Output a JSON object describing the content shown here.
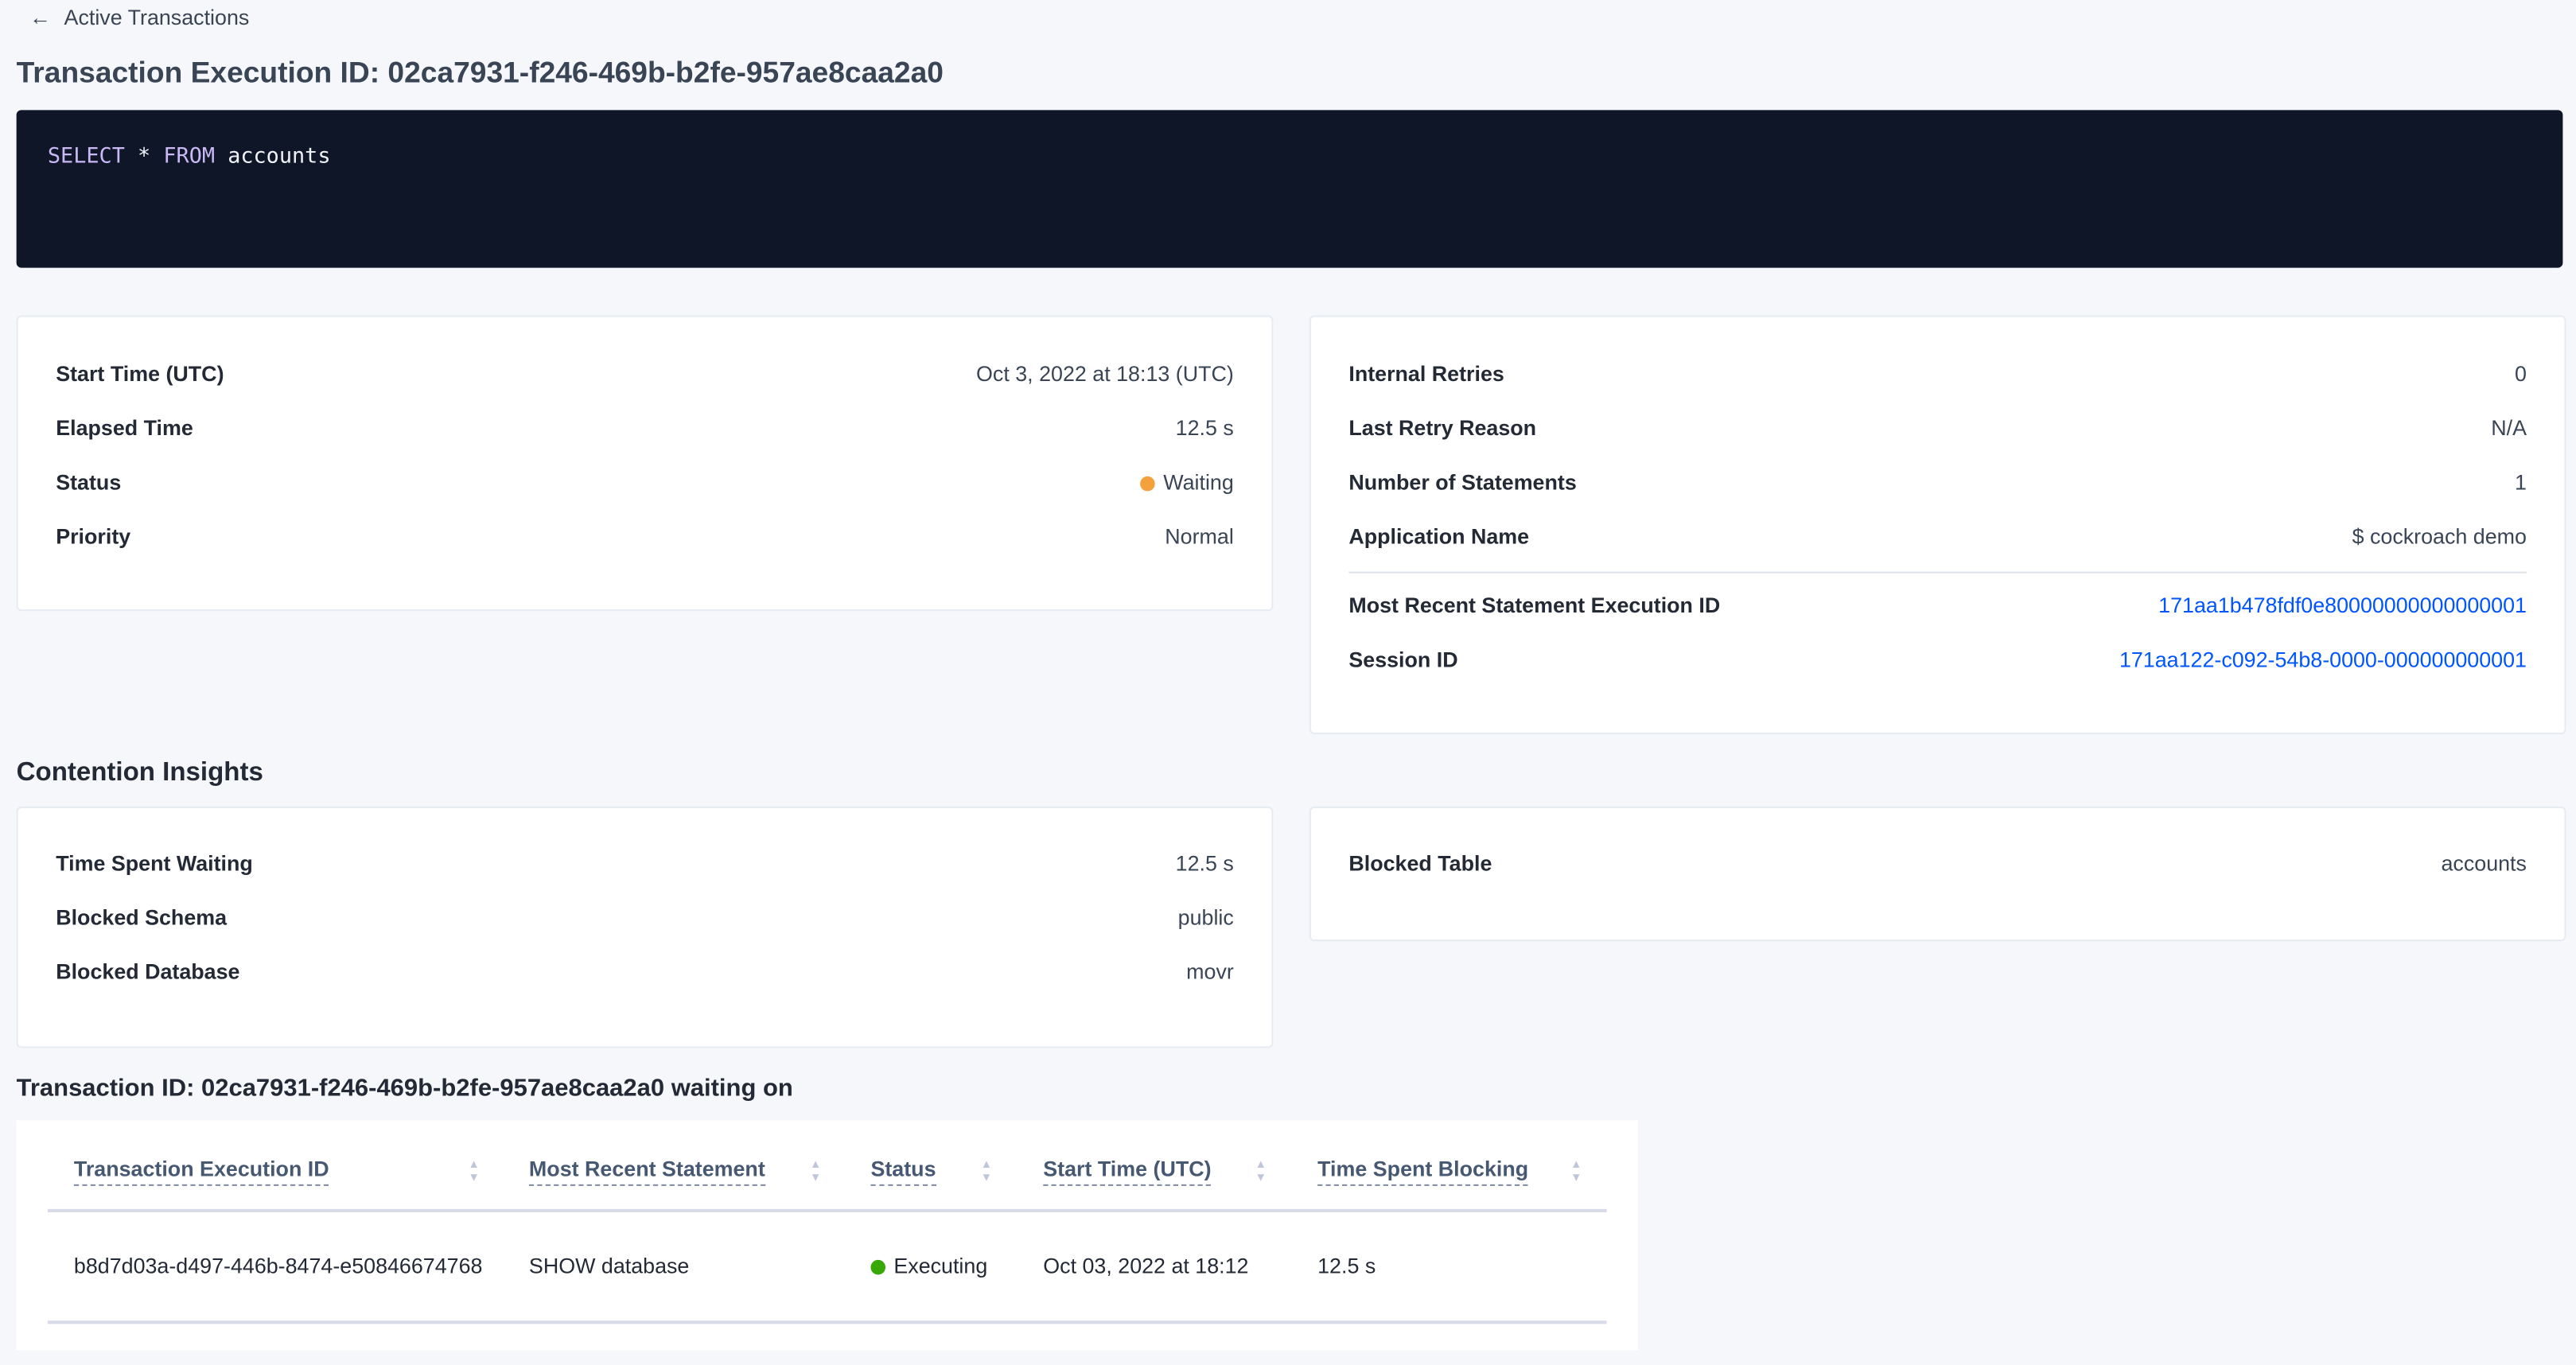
{
  "breadcrumb": {
    "label": "Active Transactions",
    "icon": "arrow-left-icon"
  },
  "page_title": "Transaction Execution ID: 02ca7931-f246-469b-b2fe-957ae8caa2a0",
  "sql": {
    "kw1": "SELECT",
    "star": "*",
    "kw2": "FROM",
    "rest": "accounts",
    "keyword_color": "#c9b8f5",
    "bg": "#0e1628"
  },
  "summary_left": [
    {
      "label": "Start Time (UTC)",
      "value": "Oct 3, 2022 at 18:13 (UTC)"
    },
    {
      "label": "Elapsed Time",
      "value": "12.5 s"
    },
    {
      "label": "Status",
      "value": "Waiting",
      "status_color": "#f5a13b"
    },
    {
      "label": "Priority",
      "value": "Normal"
    }
  ],
  "summary_right": [
    {
      "label": "Internal Retries",
      "value": "0"
    },
    {
      "label": "Last Retry Reason",
      "value": "N/A"
    },
    {
      "label": "Number of Statements",
      "value": "1"
    },
    {
      "label": "Application Name",
      "value": "$ cockroach demo"
    },
    {
      "label": "Most Recent Statement Execution ID",
      "value": "171aa1b478fdf0e80000000000000001"
    },
    {
      "label": "Session ID",
      "value": "171aa122-c092-54b8-0000-000000000001"
    }
  ],
  "contention": {
    "title": "Contention Insights",
    "left": [
      {
        "label": "Time Spent Waiting",
        "value": "12.5 s"
      },
      {
        "label": "Blocked Schema",
        "value": "public"
      },
      {
        "label": "Blocked Database",
        "value": "movr"
      }
    ],
    "right": [
      {
        "label": "Blocked Table",
        "value": "accounts"
      }
    ]
  },
  "waiting": {
    "title": "Transaction ID: 02ca7931-f246-469b-b2fe-957ae8caa2a0 waiting on",
    "columns": [
      "Transaction Execution ID",
      "Most Recent Statement",
      "Status",
      "Start Time (UTC)",
      "Time Spent Blocking"
    ],
    "rows": [
      {
        "id": "b8d7d03a-d497-446b-8474-e50846674768",
        "statement": "SHOW database",
        "status": "Executing",
        "status_color": "#37a806",
        "start": "Oct 03, 2022 at 18:12",
        "blocking": "12.5 s"
      }
    ]
  },
  "link_color": "#0055ff"
}
